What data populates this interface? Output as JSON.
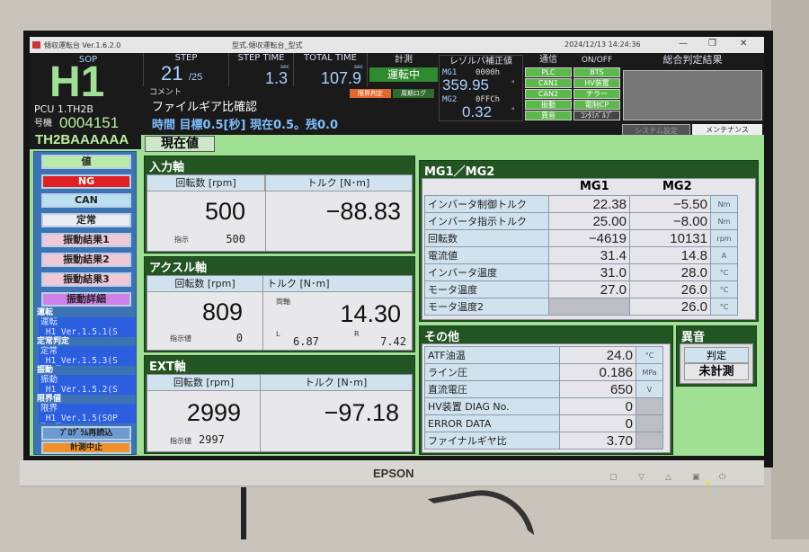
{
  "window": {
    "app_title": "傾収運転台 Ver.1.6.2.0",
    "center_title": "型式.傾収運転台_型式",
    "datetime": "2024/12/13 14:24:36",
    "min": "—",
    "max": "❐",
    "close": "✕"
  },
  "sop": {
    "label": "SOP",
    "code": "H1",
    "pcu": "PCU 1.TH2B",
    "machine_label": "号機",
    "machine_no": "0004151",
    "model": "TH2BAAAAAA"
  },
  "step": {
    "label": "STEP",
    "current": "21",
    "total": "/25"
  },
  "step_time": {
    "label": "STEP TIME",
    "unit": "sec",
    "value": "1.3"
  },
  "total_time": {
    "label": "TOTAL TIME",
    "unit": "sec",
    "value": "107.9"
  },
  "measure": {
    "label": "計測",
    "status": "運転中",
    "limit_btn": "限界判定",
    "cycle_log_btn": "周期ログ"
  },
  "resolver": {
    "label": "レゾルバ補正値",
    "mg1_label": "MG1",
    "mg1_hex": "0000h",
    "mg1_value": "359.95",
    "mg2_label": "MG2",
    "mg2_hex": "0FFCh",
    "mg2_value": "0.32",
    "unit": "°"
  },
  "comm": {
    "label": "通信",
    "items": [
      "PLC",
      "CAN1",
      "CAN2",
      "振動",
      "異音"
    ]
  },
  "onoff": {
    "label": "ON/OFF",
    "items": [
      "BTS",
      "HV装置",
      "チラー",
      "電制CP",
      "ｺﾝﾀﾐﾊﾞﾙﾌﾞ"
    ]
  },
  "overall": {
    "label": "総合判定結果",
    "system_btn": "システム設定",
    "maint_btn": "メンテナンス"
  },
  "comment": {
    "label": "コメント",
    "text": "ファイルギア比確認",
    "status": "時間 目標0.5[秒] 現在0.5。残0.0"
  },
  "current_value_label": "現在値",
  "sidebar": {
    "header": "値",
    "buttons": [
      "NG",
      "CAN",
      "定常",
      "振動結果1",
      "振動結果2",
      "振動結果3",
      "振動詳細"
    ],
    "programs": [
      {
        "label": "運転",
        "value": "運転\n_H1_Ver.1.5.1(S"
      },
      {
        "label": "定常判定",
        "value": "定常\n_H1_Ver.1.5.3(S"
      },
      {
        "label": "振動",
        "value": "振動\n_H1_Ver.1.5.2(S"
      },
      {
        "label": "限界値",
        "value": "限界\n_H1_Ver.1.5(SOP"
      }
    ],
    "reload": "ﾌﾟﾛｸﾞﾗﾑ再読込",
    "stop": "計測中止",
    "colors": {
      "NG": "#e02020",
      "CAN": "#b9dff0",
      "定常": "#ececf0",
      "振動結果": "#f0c8d8",
      "振動詳細": "#d080e8",
      "stop": "#f0902a"
    }
  },
  "input_shaft": {
    "title": "入力軸",
    "rpm_label": "回転数 [rpm]",
    "torque_label": "トルク [N･m]",
    "rpm": "500",
    "cmd_label": "指示",
    "cmd": "500",
    "torque": "−88.83"
  },
  "axle_shaft": {
    "title": "アクスル軸",
    "rpm_label": "回転数 [rpm]",
    "torque_label": "トルク [N･m]",
    "rpm": "809",
    "cmd_label": "指示値",
    "cmd": "0",
    "both_label": "両軸",
    "torque": "14.30",
    "l_label": "L",
    "l": "6.87",
    "r_label": "R",
    "r": "7.42"
  },
  "ext_shaft": {
    "title": "EXT軸",
    "rpm_label": "回転数 [rpm]",
    "torque_label": "トルク [N･m]",
    "rpm": "2999",
    "cmd_label": "指示値",
    "cmd": "2997",
    "torque": "−97.18"
  },
  "mg": {
    "title": "MG1／MG2",
    "col1": "MG1",
    "col2": "MG2",
    "rows": [
      {
        "k": "インバータ制御トルク",
        "a": "22.38",
        "b": "−5.50",
        "u": "Nm"
      },
      {
        "k": "インバータ指示トルク",
        "a": "25.00",
        "b": "−8.00",
        "u": "Nm"
      },
      {
        "k": "回転数",
        "a": "−4619",
        "b": "10131",
        "u": "rpm"
      },
      {
        "k": "電流値",
        "a": "31.4",
        "b": "14.8",
        "u": "A"
      },
      {
        "k": "インバータ温度",
        "a": "31.0",
        "b": "28.0",
        "u": "°C"
      },
      {
        "k": "モータ温度",
        "a": "27.0",
        "b": "26.0",
        "u": "°C"
      },
      {
        "k": "モータ温度2",
        "a": "",
        "b": "26.0",
        "u": "°C"
      }
    ]
  },
  "other": {
    "title": "その他",
    "rows": [
      {
        "k": "ATF油温",
        "v": "24.0",
        "u": "°C"
      },
      {
        "k": "ライン圧",
        "v": "0.186",
        "u": "MPa"
      },
      {
        "k": "直流電圧",
        "v": "650",
        "u": "V"
      },
      {
        "k": "HV装置 DIAG No.",
        "v": "0",
        "u": ""
      },
      {
        "k": "ERROR DATA",
        "v": "0",
        "u": ""
      },
      {
        "k": "ファイナルギヤ比",
        "v": "3.70",
        "u": ""
      }
    ]
  },
  "noise": {
    "title": "異音",
    "judge_label": "判定",
    "judge_value": "未計測"
  },
  "monitor": {
    "brand": "EPSON"
  }
}
